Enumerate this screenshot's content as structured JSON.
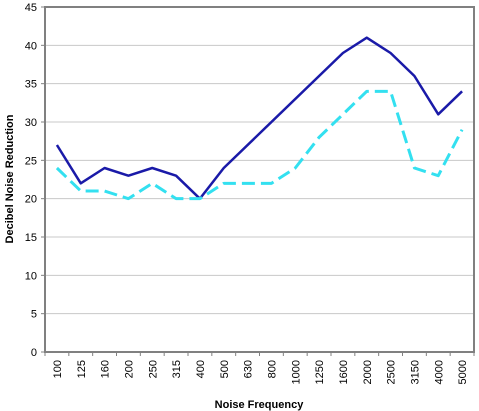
{
  "chart_data": {
    "type": "line",
    "xlabel": "Noise Frequency",
    "ylabel": "Decibel Noise Reduction",
    "categories": [
      "100",
      "125",
      "160",
      "200",
      "250",
      "315",
      "400",
      "500",
      "630",
      "800",
      "1000",
      "1250",
      "1600",
      "2000",
      "2500",
      "3150",
      "4000",
      "5000"
    ],
    "ylim": [
      0,
      45
    ],
    "yticks": [
      "0",
      "5",
      "10",
      "15",
      "20",
      "25",
      "30",
      "35",
      "40",
      "45"
    ],
    "grid": "horizontal",
    "legend": "none",
    "series": [
      {
        "color": "#1a1aa8",
        "dash": "solid",
        "values": [
          27,
          22,
          24,
          23,
          24,
          23,
          20,
          24,
          null,
          null,
          null,
          null,
          39,
          41,
          39,
          36,
          31,
          34
        ]
      },
      {
        "color": "#33e0f0",
        "dash": "dashed",
        "values": [
          24,
          21,
          21,
          20,
          22,
          20,
          20,
          22,
          22,
          22,
          24,
          28,
          31,
          34,
          34,
          24,
          23,
          29
        ]
      }
    ]
  }
}
